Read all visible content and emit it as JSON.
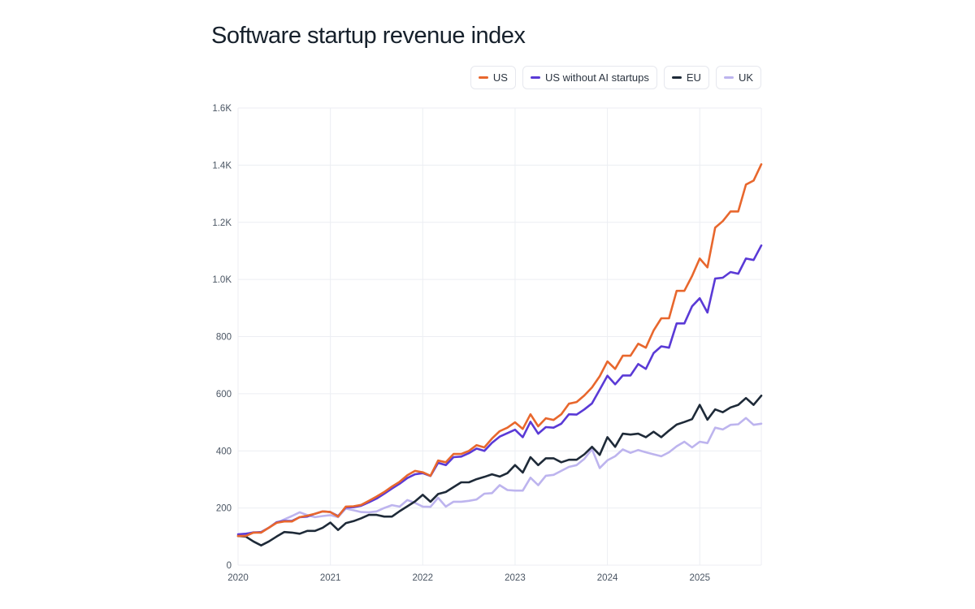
{
  "chart_data": {
    "type": "line",
    "title": "Software startup revenue index",
    "xlabel": "",
    "ylabel": "",
    "x_start": "2020-01",
    "x_step": "month",
    "x_ticks": [
      "2020",
      "2021",
      "2022",
      "2023",
      "2024",
      "2025"
    ],
    "y_ticks": [
      "0",
      "200",
      "400",
      "600",
      "800",
      "1.0K",
      "1.2K",
      "1.4K",
      "1.6K"
    ],
    "y_tick_values": [
      0,
      200,
      400,
      600,
      800,
      1000,
      1200,
      1400,
      1600
    ],
    "ylim": [
      0,
      1600
    ],
    "xlim": [
      "2020-01",
      "2025-09"
    ],
    "grid": true,
    "legend_position": "top-right",
    "series": [
      {
        "name": "US",
        "color": "#e8672d",
        "values": [
          102,
          102,
          114,
          114,
          131,
          148,
          153,
          153,
          168,
          173,
          180,
          188,
          186,
          170,
          205,
          206,
          211,
          225,
          240,
          256,
          275,
          292,
          315,
          330,
          325,
          313,
          366,
          360,
          389,
          389,
          400,
          420,
          412,
          443,
          469,
          481,
          500,
          477,
          528,
          486,
          514,
          508,
          528,
          565,
          571,
          594,
          622,
          661,
          713,
          687,
          733,
          733,
          775,
          761,
          821,
          864,
          864,
          960,
          960,
          1012,
          1073,
          1042,
          1181,
          1204,
          1238,
          1238,
          1332,
          1346,
          1403
        ]
      },
      {
        "name": "US without AI startups",
        "color": "#5a3ad6",
        "values": [
          108,
          110,
          114,
          116,
          131,
          150,
          155,
          155,
          168,
          170,
          180,
          188,
          186,
          172,
          202,
          203,
          208,
          220,
          233,
          250,
          268,
          285,
          305,
          318,
          322,
          312,
          358,
          350,
          378,
          380,
          392,
          408,
          400,
          428,
          450,
          462,
          474,
          448,
          502,
          460,
          483,
          481,
          495,
          528,
          527,
          545,
          566,
          614,
          663,
          633,
          664,
          664,
          704,
          687,
          742,
          766,
          761,
          846,
          846,
          906,
          934,
          884,
          1003,
          1006,
          1026,
          1020,
          1073,
          1068,
          1119
        ]
      },
      {
        "name": "EU",
        "color": "#1e2a38",
        "values": [
          102,
          100,
          83,
          69,
          83,
          100,
          116,
          114,
          110,
          120,
          120,
          131,
          149,
          123,
          147,
          154,
          164,
          176,
          176,
          170,
          170,
          189,
          206,
          223,
          246,
          222,
          249,
          256,
          273,
          290,
          290,
          301,
          309,
          318,
          310,
          322,
          350,
          324,
          378,
          350,
          374,
          374,
          360,
          369,
          369,
          388,
          414,
          386,
          448,
          414,
          460,
          457,
          460,
          448,
          467,
          448,
          471,
          492,
          501,
          511,
          561,
          509,
          545,
          535,
          552,
          561,
          585,
          561,
          593
        ]
      },
      {
        "name": "UK",
        "color": "#bdb4ee",
        "values": [
          102,
          108,
          116,
          114,
          131,
          148,
          160,
          172,
          185,
          175,
          168,
          172,
          175,
          168,
          198,
          192,
          186,
          185,
          188,
          200,
          210,
          205,
          228,
          218,
          205,
          204,
          236,
          205,
          222,
          222,
          225,
          230,
          250,
          252,
          280,
          263,
          261,
          261,
          306,
          280,
          313,
          316,
          330,
          344,
          350,
          372,
          406,
          340,
          367,
          381,
          405,
          393,
          403,
          395,
          388,
          381,
          395,
          416,
          432,
          412,
          432,
          427,
          481,
          475,
          491,
          493,
          515,
          491,
          495
        ]
      }
    ]
  }
}
